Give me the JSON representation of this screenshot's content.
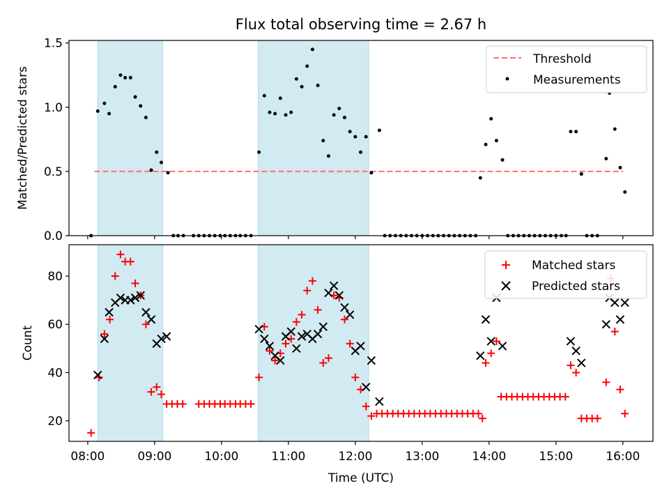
{
  "colors": {
    "shade": "#add8e6",
    "threshold": "#ff6f6f",
    "measurement": "#000000",
    "matched": "#ff0000",
    "predicted": "#000000",
    "axis": "#000000"
  },
  "chart_data": [
    {
      "type": "scatter",
      "title": "Flux total observing time = 2.67 h",
      "xlabel": "",
      "ylabel": "Matched/Predicted stars",
      "xlim": [
        7.72,
        16.45
      ],
      "ylim": [
        0,
        1.52
      ],
      "yticks": [
        0.0,
        0.5,
        1.0,
        1.5
      ],
      "ytick_labels": [
        "0.0",
        "0.5",
        "1.0",
        "1.5"
      ],
      "xticks": [
        8,
        9,
        10,
        11,
        12,
        13,
        14,
        15,
        16
      ],
      "shaded_spans": [
        [
          8.15,
          9.12
        ],
        [
          10.55,
          12.2
        ]
      ],
      "threshold": {
        "name": "Threshold",
        "value": 0.5,
        "x_range": [
          8.1,
          16.0
        ]
      },
      "legend_position": "upper right",
      "series": [
        {
          "name": "Measurements",
          "points": [
            [
              8.05,
              0.0
            ],
            [
              8.15,
              0.97
            ],
            [
              8.25,
              1.03
            ],
            [
              8.32,
              0.95
            ],
            [
              8.41,
              1.16
            ],
            [
              8.49,
              1.25
            ],
            [
              8.56,
              1.23
            ],
            [
              8.64,
              1.23
            ],
            [
              8.71,
              1.08
            ],
            [
              8.79,
              1.01
            ],
            [
              8.87,
              0.92
            ],
            [
              8.95,
              0.51
            ],
            [
              9.03,
              0.65
            ],
            [
              9.1,
              0.57
            ],
            [
              9.2,
              0.49
            ],
            [
              9.28,
              0.0
            ],
            [
              9.35,
              0.0
            ],
            [
              9.43,
              0.0
            ],
            [
              9.58,
              0.0
            ],
            [
              9.66,
              0.0
            ],
            [
              9.74,
              0.0
            ],
            [
              9.82,
              0.0
            ],
            [
              9.9,
              0.0
            ],
            [
              9.98,
              0.0
            ],
            [
              10.05,
              0.0
            ],
            [
              10.13,
              0.0
            ],
            [
              10.21,
              0.0
            ],
            [
              10.28,
              0.0
            ],
            [
              10.36,
              0.0
            ],
            [
              10.44,
              0.0
            ],
            [
              10.56,
              0.65
            ],
            [
              10.64,
              1.09
            ],
            [
              10.72,
              0.96
            ],
            [
              10.8,
              0.95
            ],
            [
              10.88,
              1.07
            ],
            [
              10.96,
              0.94
            ],
            [
              11.04,
              0.96
            ],
            [
              11.12,
              1.22
            ],
            [
              11.2,
              1.16
            ],
            [
              11.28,
              1.32
            ],
            [
              11.36,
              1.45
            ],
            [
              11.44,
              1.17
            ],
            [
              11.52,
              0.74
            ],
            [
              11.6,
              0.62
            ],
            [
              11.68,
              0.94
            ],
            [
              11.76,
              0.99
            ],
            [
              11.84,
              0.92
            ],
            [
              11.92,
              0.81
            ],
            [
              12.0,
              0.77
            ],
            [
              12.08,
              0.65
            ],
            [
              12.16,
              0.77
            ],
            [
              12.24,
              0.49
            ],
            [
              12.36,
              0.82
            ],
            [
              12.44,
              0.0
            ],
            [
              12.52,
              0.0
            ],
            [
              12.6,
              0.0
            ],
            [
              12.68,
              0.0
            ],
            [
              12.76,
              0.0
            ],
            [
              12.84,
              0.0
            ],
            [
              12.92,
              0.0
            ],
            [
              13.0,
              0.0
            ],
            [
              13.08,
              0.0
            ],
            [
              13.16,
              0.0
            ],
            [
              13.24,
              0.0
            ],
            [
              13.32,
              0.0
            ],
            [
              13.4,
              0.0
            ],
            [
              13.48,
              0.0
            ],
            [
              13.56,
              0.0
            ],
            [
              13.64,
              0.0
            ],
            [
              13.72,
              0.0
            ],
            [
              13.8,
              0.0
            ],
            [
              13.87,
              0.45
            ],
            [
              13.95,
              0.71
            ],
            [
              14.03,
              0.91
            ],
            [
              14.11,
              0.74
            ],
            [
              14.2,
              0.59
            ],
            [
              14.28,
              0.0
            ],
            [
              14.36,
              0.0
            ],
            [
              14.44,
              0.0
            ],
            [
              14.52,
              0.0
            ],
            [
              14.6,
              0.0
            ],
            [
              14.68,
              0.0
            ],
            [
              14.76,
              0.0
            ],
            [
              14.84,
              0.0
            ],
            [
              14.92,
              0.0
            ],
            [
              15.0,
              0.0
            ],
            [
              15.08,
              0.0
            ],
            [
              15.15,
              0.0
            ],
            [
              15.22,
              0.81
            ],
            [
              15.3,
              0.81
            ],
            [
              15.38,
              0.48
            ],
            [
              15.46,
              0.0
            ],
            [
              15.54,
              0.0
            ],
            [
              15.62,
              0.0
            ],
            [
              15.75,
              0.6
            ],
            [
              15.8,
              1.11
            ],
            [
              15.88,
              0.83
            ],
            [
              15.96,
              0.53
            ],
            [
              16.03,
              0.34
            ]
          ]
        }
      ]
    },
    {
      "type": "scatter",
      "title": "",
      "xlabel": "Time (UTC)",
      "ylabel": "Count",
      "xlim": [
        7.72,
        16.45
      ],
      "ylim": [
        11.5,
        93
      ],
      "yticks": [
        20,
        40,
        60,
        80
      ],
      "ytick_labels": [
        "20",
        "40",
        "60",
        "80"
      ],
      "xticks": [
        8,
        9,
        10,
        11,
        12,
        13,
        14,
        15,
        16
      ],
      "xtick_labels": [
        "08:00",
        "09:00",
        "10:00",
        "11:00",
        "12:00",
        "13:00",
        "14:00",
        "15:00",
        "16:00"
      ],
      "shaded_spans": [
        [
          8.15,
          9.12
        ],
        [
          10.55,
          12.2
        ]
      ],
      "legend_position": "upper right",
      "series": [
        {
          "name": "Matched stars",
          "marker": "plus",
          "points": [
            [
              8.05,
              15
            ],
            [
              8.17,
              38
            ],
            [
              8.25,
              56
            ],
            [
              8.33,
              62
            ],
            [
              8.41,
              80
            ],
            [
              8.49,
              89
            ],
            [
              8.56,
              86
            ],
            [
              8.64,
              86
            ],
            [
              8.71,
              77
            ],
            [
              8.79,
              72
            ],
            [
              8.87,
              60
            ],
            [
              8.95,
              32
            ],
            [
              9.03,
              34
            ],
            [
              9.1,
              31
            ],
            [
              9.18,
              27
            ],
            [
              9.26,
              27
            ],
            [
              9.34,
              27
            ],
            [
              9.42,
              27
            ],
            [
              9.66,
              27
            ],
            [
              9.74,
              27
            ],
            [
              9.82,
              27
            ],
            [
              9.9,
              27
            ],
            [
              9.98,
              27
            ],
            [
              10.05,
              27
            ],
            [
              10.13,
              27
            ],
            [
              10.21,
              27
            ],
            [
              10.28,
              27
            ],
            [
              10.36,
              27
            ],
            [
              10.44,
              27
            ],
            [
              10.56,
              38
            ],
            [
              10.64,
              59
            ],
            [
              10.72,
              49
            ],
            [
              10.8,
              45
            ],
            [
              10.88,
              48
            ],
            [
              10.96,
              52
            ],
            [
              11.04,
              54
            ],
            [
              11.12,
              61
            ],
            [
              11.2,
              64
            ],
            [
              11.28,
              74
            ],
            [
              11.36,
              78
            ],
            [
              11.44,
              66
            ],
            [
              11.52,
              44
            ],
            [
              11.6,
              46
            ],
            [
              11.68,
              72
            ],
            [
              11.76,
              71
            ],
            [
              11.84,
              62
            ],
            [
              11.92,
              52
            ],
            [
              12.0,
              38
            ],
            [
              12.08,
              33
            ],
            [
              12.16,
              26
            ],
            [
              12.24,
              22
            ],
            [
              12.32,
              23
            ],
            [
              12.4,
              23
            ],
            [
              12.48,
              23
            ],
            [
              12.56,
              23
            ],
            [
              12.64,
              23
            ],
            [
              12.72,
              23
            ],
            [
              12.8,
              23
            ],
            [
              12.88,
              23
            ],
            [
              12.96,
              23
            ],
            [
              13.04,
              23
            ],
            [
              13.12,
              23
            ],
            [
              13.2,
              23
            ],
            [
              13.28,
              23
            ],
            [
              13.36,
              23
            ],
            [
              13.44,
              23
            ],
            [
              13.52,
              23
            ],
            [
              13.6,
              23
            ],
            [
              13.68,
              23
            ],
            [
              13.76,
              23
            ],
            [
              13.84,
              23
            ],
            [
              13.9,
              21
            ],
            [
              13.95,
              44
            ],
            [
              14.03,
              48
            ],
            [
              14.11,
              53
            ],
            [
              14.18,
              30
            ],
            [
              14.26,
              30
            ],
            [
              14.34,
              30
            ],
            [
              14.42,
              30
            ],
            [
              14.5,
              30
            ],
            [
              14.58,
              30
            ],
            [
              14.66,
              30
            ],
            [
              14.74,
              30
            ],
            [
              14.82,
              30
            ],
            [
              14.9,
              30
            ],
            [
              14.98,
              30
            ],
            [
              15.06,
              30
            ],
            [
              15.14,
              30
            ],
            [
              15.22,
              43
            ],
            [
              15.3,
              40
            ],
            [
              15.38,
              21
            ],
            [
              15.46,
              21
            ],
            [
              15.54,
              21
            ],
            [
              15.62,
              21
            ],
            [
              15.75,
              36
            ],
            [
              15.82,
              79
            ],
            [
              15.88,
              57
            ],
            [
              15.96,
              33
            ],
            [
              16.03,
              23
            ]
          ]
        },
        {
          "name": "Predicted stars",
          "marker": "x",
          "points": [
            [
              8.15,
              39
            ],
            [
              8.25,
              54
            ],
            [
              8.32,
              65
            ],
            [
              8.41,
              69
            ],
            [
              8.49,
              71
            ],
            [
              8.56,
              70
            ],
            [
              8.64,
              70
            ],
            [
              8.71,
              71
            ],
            [
              8.79,
              72
            ],
            [
              8.87,
              65
            ],
            [
              8.95,
              62
            ],
            [
              9.03,
              52
            ],
            [
              9.1,
              54
            ],
            [
              9.18,
              55
            ],
            [
              10.56,
              58
            ],
            [
              10.64,
              54
            ],
            [
              10.72,
              51
            ],
            [
              10.8,
              47
            ],
            [
              10.88,
              45
            ],
            [
              10.96,
              55
            ],
            [
              11.04,
              57
            ],
            [
              11.12,
              50
            ],
            [
              11.2,
              55
            ],
            [
              11.28,
              56
            ],
            [
              11.36,
              54
            ],
            [
              11.44,
              56
            ],
            [
              11.52,
              59
            ],
            [
              11.6,
              73
            ],
            [
              11.68,
              76
            ],
            [
              11.76,
              72
            ],
            [
              11.84,
              67
            ],
            [
              11.92,
              64
            ],
            [
              12.0,
              49
            ],
            [
              12.08,
              51
            ],
            [
              12.16,
              34
            ],
            [
              12.24,
              45
            ],
            [
              12.36,
              28
            ],
            [
              13.87,
              47
            ],
            [
              13.95,
              62
            ],
            [
              14.03,
              53
            ],
            [
              14.11,
              71
            ],
            [
              14.2,
              51
            ],
            [
              15.22,
              53
            ],
            [
              15.3,
              49
            ],
            [
              15.38,
              44
            ],
            [
              15.75,
              60
            ],
            [
              15.8,
              71
            ],
            [
              15.88,
              69
            ],
            [
              15.96,
              62
            ],
            [
              16.03,
              69
            ]
          ]
        }
      ]
    }
  ]
}
